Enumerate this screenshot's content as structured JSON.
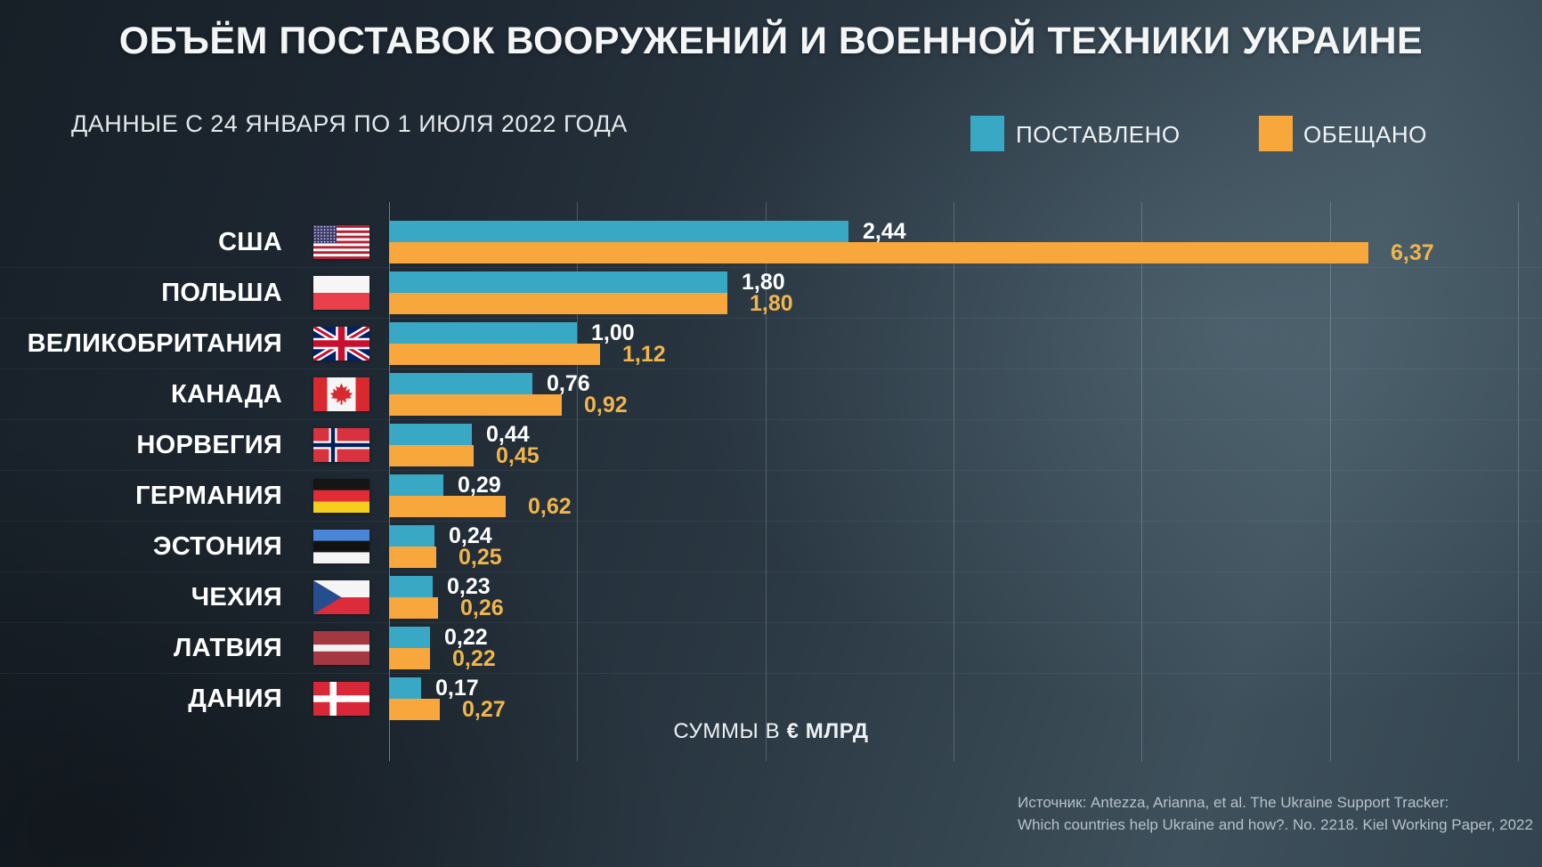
{
  "title": "ОБЪЁМ ПОСТАВОК ВООРУЖЕНИЙ И ВОЕННОЙ ТЕХНИКИ УКРАИНЕ",
  "subtitle": "ДАННЫЕ С 24 ЯНВАРЯ ПО 1 ИЮЛЯ 2022 ГОДА",
  "legend": {
    "delivered": "ПОСТАВЛЕНО",
    "promised": "ОБЕЩАНО"
  },
  "units_note": {
    "prefix": "СУММЫ В",
    "currency": "€ МЛРД"
  },
  "source": {
    "line1": "Источник: Antezza, Arianna, et al. The Ukraine Support Tracker:",
    "line2": "Which countries help Ukraine and how?. No. 2218. Kiel Working Paper, 2022"
  },
  "colors": {
    "delivered_bar": "#38A8C5",
    "promised_bar": "#F7A73C",
    "delivered_value_text": "#FFFFFF",
    "promised_value_text": "#F0B54D"
  },
  "chart_data": {
    "type": "bar",
    "orientation": "horizontal",
    "title": "ОБЪЁМ ПОСТАВОК ВООРУЖЕНИЙ И ВОЕННОЙ ТЕХНИКИ УКРАИНЕ",
    "subtitle": "ДАННЫЕ С 24 ЯНВАРЯ ПО 1 ИЮЛЯ 2022 ГОДА",
    "units": "€ млрд",
    "xlim": [
      0,
      6
    ],
    "gridline_values": [
      0,
      1,
      2,
      3,
      4,
      5,
      6
    ],
    "grid": true,
    "legend_position": "top-right",
    "categories": [
      "США",
      "ПОЛЬША",
      "ВЕЛИКОБРИТАНИЯ",
      "КАНАДА",
      "НОРВЕГИЯ",
      "ГЕРМАНИЯ",
      "ЭСТОНИЯ",
      "ЧЕХИЯ",
      "ЛАТВИЯ",
      "ДАНИЯ"
    ],
    "series": [
      {
        "name": "ПОСТАВЛЕНО",
        "values": [
          2.44,
          1.8,
          1.0,
          0.76,
          0.44,
          0.29,
          0.24,
          0.23,
          0.22,
          0.17
        ]
      },
      {
        "name": "ОБЕЩАНО",
        "values": [
          6.37,
          1.8,
          1.12,
          0.92,
          0.45,
          0.62,
          0.25,
          0.26,
          0.22,
          0.27
        ]
      }
    ]
  },
  "rows": [
    {
      "country": "США",
      "flag": "usa",
      "delivered": 2.44,
      "promised": 6.37,
      "delivered_label": "2,44",
      "promised_label": "6,37"
    },
    {
      "country": "ПОЛЬША",
      "flag": "poland",
      "delivered": 1.8,
      "promised": 1.8,
      "delivered_label": "1,80",
      "promised_label": "1,80"
    },
    {
      "country": "ВЕЛИКОБРИТАНИЯ",
      "flag": "uk",
      "delivered": 1.0,
      "promised": 1.12,
      "delivered_label": "1,00",
      "promised_label": "1,12"
    },
    {
      "country": "КАНАДА",
      "flag": "canada",
      "delivered": 0.76,
      "promised": 0.92,
      "delivered_label": "0,76",
      "promised_label": "0,92"
    },
    {
      "country": "НОРВЕГИЯ",
      "flag": "norway",
      "delivered": 0.44,
      "promised": 0.45,
      "delivered_label": "0,44",
      "promised_label": "0,45"
    },
    {
      "country": "ГЕРМАНИЯ",
      "flag": "germany",
      "delivered": 0.29,
      "promised": 0.62,
      "delivered_label": "0,29",
      "promised_label": "0,62"
    },
    {
      "country": "ЭСТОНИЯ",
      "flag": "estonia",
      "delivered": 0.24,
      "promised": 0.25,
      "delivered_label": "0,24",
      "promised_label": "0,25"
    },
    {
      "country": "ЧЕХИЯ",
      "flag": "czechia",
      "delivered": 0.23,
      "promised": 0.26,
      "delivered_label": "0,23",
      "promised_label": "0,26"
    },
    {
      "country": "ЛАТВИЯ",
      "flag": "latvia",
      "delivered": 0.22,
      "promised": 0.22,
      "delivered_label": "0,22",
      "promised_label": "0,22"
    },
    {
      "country": "ДАНИЯ",
      "flag": "denmark",
      "delivered": 0.17,
      "promised": 0.27,
      "delivered_label": "0,17",
      "promised_label": "0,27"
    }
  ]
}
